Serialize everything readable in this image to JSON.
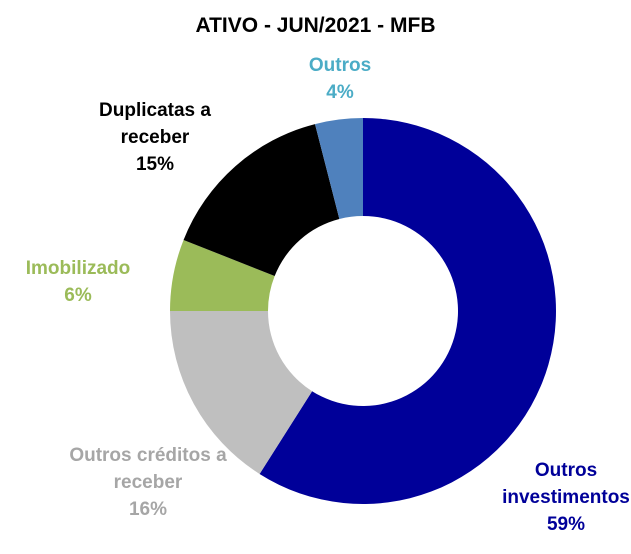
{
  "chart_data": {
    "type": "donut",
    "title": "ATIVO - JUN/2021 - MFB",
    "categories": [
      "Outros investimentos",
      "Outros créditos a receber",
      "Imobilizado",
      "Duplicatas a receber",
      "Outros"
    ],
    "values": [
      59,
      16,
      6,
      15,
      4
    ],
    "value_labels": [
      "59%",
      "16%",
      "6%",
      "15%",
      "4%"
    ],
    "colors": [
      "#000099",
      "#BFBFBF",
      "#9BBB59",
      "#000000",
      "#4F81BD"
    ],
    "label_colors": [
      "#000099",
      "#A6A6A6",
      "#9BBB59",
      "#000000",
      "#4BACC6"
    ]
  }
}
